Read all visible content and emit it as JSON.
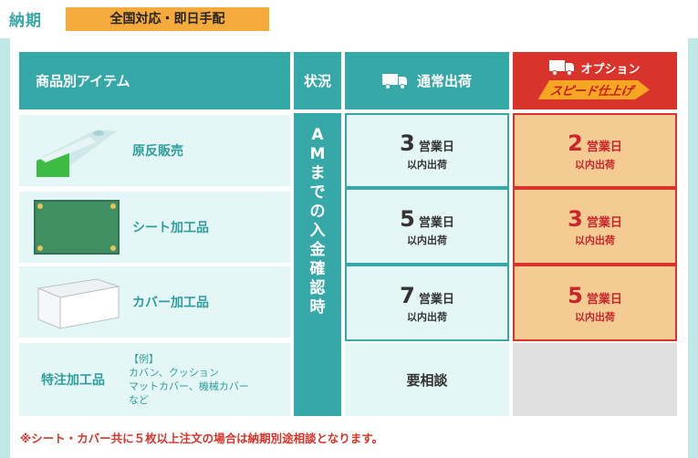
{
  "header": {
    "label": "納期",
    "badge": "全国対応・即日手配"
  },
  "table": {
    "col_items": "商品別アイテム",
    "col_status": "状況",
    "col_normal": "通常出荷",
    "col_option_small": "オプション",
    "col_option_speed": "スピード仕上げ",
    "status_text": [
      "A",
      "M",
      "ま",
      "で",
      "の",
      "入",
      "金",
      "確",
      "認",
      "時"
    ],
    "rows": [
      {
        "item": "原反販売",
        "normal_days": "3",
        "option_days": "2"
      },
      {
        "item": "シート加工品",
        "normal_days": "5",
        "option_days": "3"
      },
      {
        "item": "カバー加工品",
        "normal_days": "7",
        "option_days": "5"
      }
    ],
    "unit": "営業日",
    "sub": "以内出荷",
    "special": {
      "label": "特注加工品",
      "example_title": "【例】",
      "example_line1": "カバン、クッション",
      "example_line2": "マットカバー、機械カバー",
      "example_line3": "など",
      "normal": "要相談"
    }
  },
  "footnote": "※シート・カバー共に５枚以上注文の場合は納期別途相談となります。",
  "colors": {
    "teal": "#36a8a7",
    "orange": "#f5ab3c",
    "red": "#d9342b",
    "light_teal": "#e4f7f6",
    "peach": "#f3cb93"
  },
  "icons": {
    "truck": "truck-icon"
  }
}
